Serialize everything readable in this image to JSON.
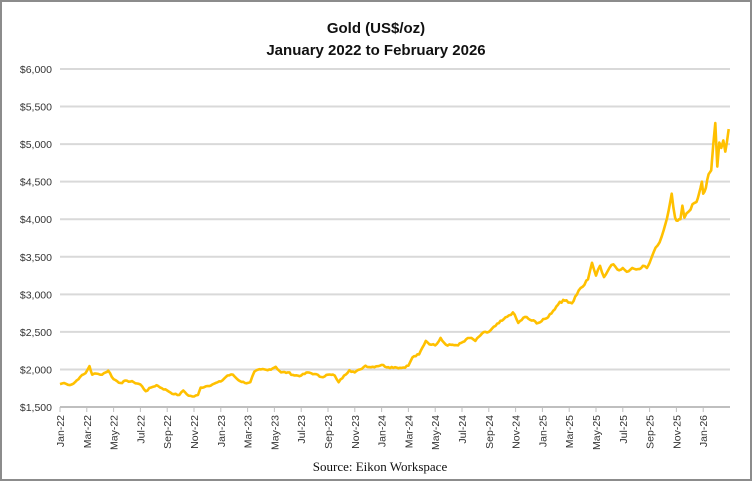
{
  "chart_data": {
    "type": "line",
    "title": "Gold (US$/oz)",
    "subtitle": "January 2022 to February 2026",
    "xlabel": "",
    "ylabel": "",
    "source": "Source: Eikon Workspace",
    "ylim": [
      1500,
      6000
    ],
    "yticks": [
      "$1,500",
      "$2,000",
      "$2,500",
      "$3,000",
      "$3,500",
      "$4,000",
      "$4,500",
      "$5,000",
      "$5,500",
      "$6,000"
    ],
    "ytick_values": [
      1500,
      2000,
      2500,
      3000,
      3500,
      4000,
      4500,
      5000,
      5500,
      6000
    ],
    "xticks": [
      "Jan-22",
      "Mar-22",
      "May-22",
      "Jul-22",
      "Sep-22",
      "Nov-22",
      "Jan-23",
      "Mar-23",
      "May-23",
      "Jul-23",
      "Sep-23",
      "Nov-23",
      "Jan-24",
      "Mar-24",
      "May-24",
      "Jul-24",
      "Sep-24",
      "Nov-24",
      "Jan-25",
      "Mar-25",
      "May-25",
      "Jul-25",
      "Sep-25",
      "Nov-25",
      "Jan-26"
    ],
    "x_unit": "months since Jan 2022",
    "xlim": [
      0,
      50
    ],
    "grid": true,
    "line_color": "#FFC000",
    "series": [
      {
        "name": "Gold (US$/oz)",
        "points": [
          [
            0,
            1805
          ],
          [
            0.3,
            1820
          ],
          [
            0.6,
            1795
          ],
          [
            1,
            1810
          ],
          [
            1.5,
            1900
          ],
          [
            1.9,
            1950
          ],
          [
            2.2,
            2045
          ],
          [
            2.4,
            1930
          ],
          [
            2.7,
            1945
          ],
          [
            3,
            1930
          ],
          [
            3.4,
            1960
          ],
          [
            3.6,
            1985
          ],
          [
            4,
            1870
          ],
          [
            4.5,
            1820
          ],
          [
            5,
            1850
          ],
          [
            5.5,
            1830
          ],
          [
            6,
            1800
          ],
          [
            6.4,
            1710
          ],
          [
            6.8,
            1760
          ],
          [
            7.2,
            1790
          ],
          [
            7.6,
            1750
          ],
          [
            8,
            1720
          ],
          [
            8.5,
            1670
          ],
          [
            8.9,
            1660
          ],
          [
            9.2,
            1720
          ],
          [
            9.6,
            1650
          ],
          [
            10,
            1640
          ],
          [
            10.3,
            1660
          ],
          [
            10.5,
            1760
          ],
          [
            11,
            1780
          ],
          [
            11.5,
            1810
          ],
          [
            12,
            1840
          ],
          [
            12.5,
            1920
          ],
          [
            12.9,
            1930
          ],
          [
            13.3,
            1860
          ],
          [
            13.8,
            1820
          ],
          [
            14.2,
            1830
          ],
          [
            14.5,
            1970
          ],
          [
            15,
            2000
          ],
          [
            15.5,
            1990
          ],
          [
            16.1,
            2035
          ],
          [
            16.5,
            1960
          ],
          [
            17,
            1960
          ],
          [
            17.5,
            1920
          ],
          [
            18,
            1920
          ],
          [
            18.5,
            1960
          ],
          [
            19,
            1940
          ],
          [
            19.5,
            1900
          ],
          [
            20,
            1930
          ],
          [
            20.5,
            1920
          ],
          [
            20.8,
            1830
          ],
          [
            21.2,
            1920
          ],
          [
            21.6,
            1990
          ],
          [
            22,
            1960
          ],
          [
            22.4,
            2000
          ],
          [
            22.8,
            2050
          ],
          [
            23.2,
            2030
          ],
          [
            24,
            2060
          ],
          [
            24.5,
            2030
          ],
          [
            25,
            2030
          ],
          [
            25.5,
            2020
          ],
          [
            26,
            2050
          ],
          [
            26.3,
            2160
          ],
          [
            26.8,
            2200
          ],
          [
            27.3,
            2380
          ],
          [
            27.7,
            2330
          ],
          [
            28,
            2320
          ],
          [
            28.4,
            2420
          ],
          [
            28.8,
            2330
          ],
          [
            29.3,
            2330
          ],
          [
            29.7,
            2320
          ],
          [
            30.3,
            2400
          ],
          [
            30.7,
            2420
          ],
          [
            31,
            2380
          ],
          [
            31.5,
            2480
          ],
          [
            32,
            2500
          ],
          [
            32.5,
            2580
          ],
          [
            33,
            2650
          ],
          [
            33.5,
            2720
          ],
          [
            33.8,
            2760
          ],
          [
            34.2,
            2620
          ],
          [
            34.7,
            2700
          ],
          [
            35.2,
            2650
          ],
          [
            35.7,
            2620
          ],
          [
            36.3,
            2680
          ],
          [
            36.8,
            2780
          ],
          [
            37.3,
            2900
          ],
          [
            37.8,
            2920
          ],
          [
            38.2,
            2880
          ],
          [
            38.7,
            3050
          ],
          [
            39,
            3100
          ],
          [
            39.4,
            3200
          ],
          [
            39.7,
            3420
          ],
          [
            40,
            3250
          ],
          [
            40.3,
            3380
          ],
          [
            40.6,
            3230
          ],
          [
            41,
            3350
          ],
          [
            41.3,
            3400
          ],
          [
            41.6,
            3330
          ],
          [
            42,
            3350
          ],
          [
            42.3,
            3300
          ],
          [
            42.7,
            3350
          ],
          [
            43,
            3330
          ],
          [
            43.5,
            3380
          ],
          [
            43.8,
            3350
          ],
          [
            44,
            3420
          ],
          [
            44.3,
            3560
          ],
          [
            44.6,
            3650
          ],
          [
            44.9,
            3770
          ],
          [
            45.2,
            3950
          ],
          [
            45.4,
            4100
          ],
          [
            45.65,
            4340
          ],
          [
            45.9,
            4020
          ],
          [
            46.1,
            3980
          ],
          [
            46.3,
            4000
          ],
          [
            46.45,
            4180
          ],
          [
            46.6,
            4020
          ],
          [
            46.9,
            4100
          ],
          [
            47.2,
            4200
          ],
          [
            47.5,
            4230
          ],
          [
            47.7,
            4350
          ],
          [
            47.9,
            4500
          ],
          [
            48,
            4340
          ],
          [
            48.2,
            4420
          ],
          [
            48.4,
            4600
          ],
          [
            48.6,
            4650
          ],
          [
            48.75,
            5000
          ],
          [
            48.9,
            5280
          ],
          [
            49.05,
            4700
          ],
          [
            49.2,
            5020
          ],
          [
            49.35,
            4950
          ],
          [
            49.5,
            5050
          ],
          [
            49.65,
            4900
          ],
          [
            49.9,
            5200
          ]
        ]
      }
    ]
  }
}
